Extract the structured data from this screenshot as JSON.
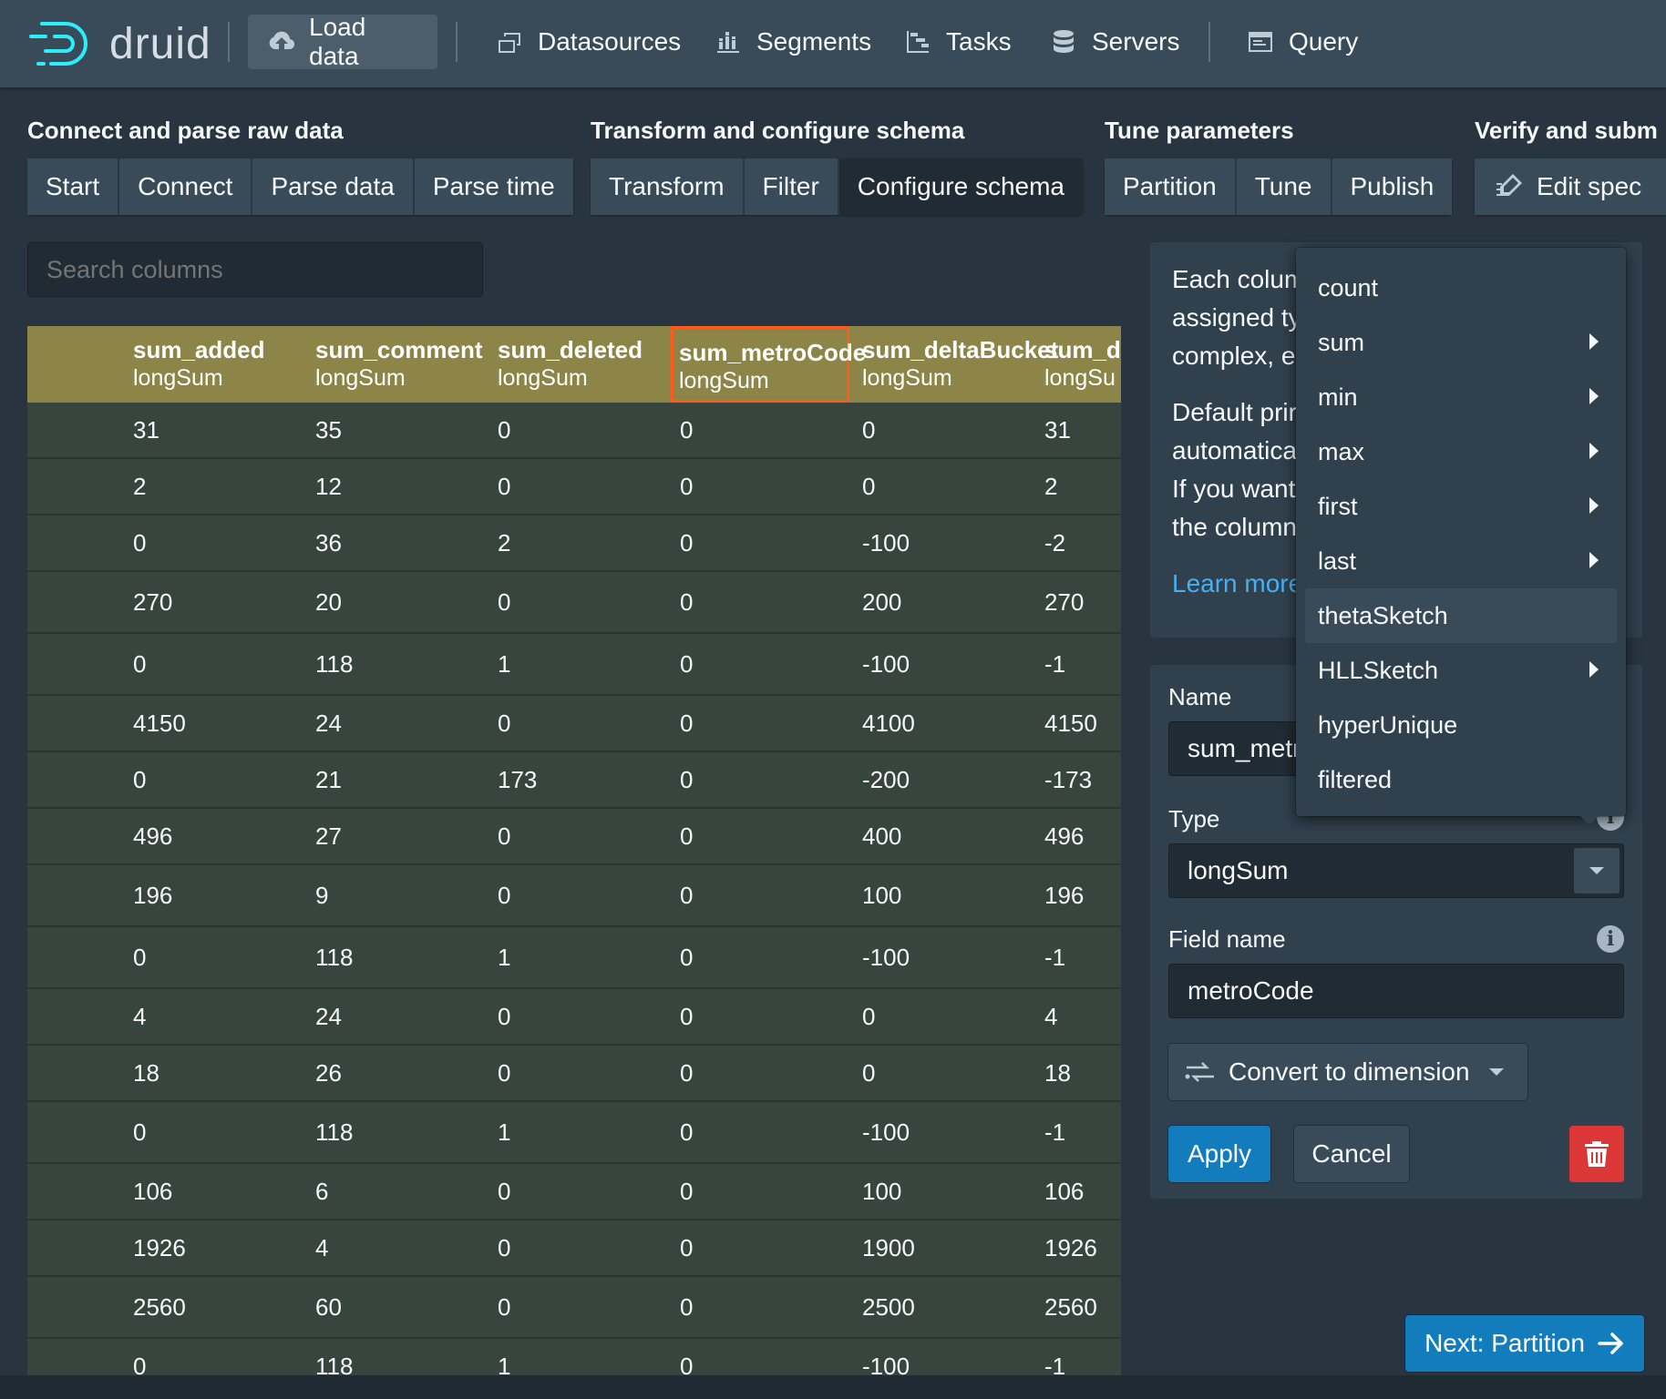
{
  "header": {
    "logo_text": "druid",
    "nav": [
      {
        "label": "Load data",
        "icon": "cloud-upload-icon",
        "active": true
      },
      {
        "label": "Datasources",
        "icon": "multi-select-icon"
      },
      {
        "label": "Segments",
        "icon": "stacked-chart-icon"
      },
      {
        "label": "Tasks",
        "icon": "gantt-chart-icon"
      },
      {
        "label": "Servers",
        "icon": "database-icon"
      },
      {
        "label": "Query",
        "icon": "application-icon"
      }
    ]
  },
  "steps": {
    "groups": [
      {
        "label": "Connect and parse raw data",
        "steps": [
          "Start",
          "Connect",
          "Parse data",
          "Parse time"
        ]
      },
      {
        "label": "Transform and configure schema",
        "steps": [
          "Transform",
          "Filter",
          "Configure schema"
        ]
      },
      {
        "label": "Tune parameters",
        "steps": [
          "Partition",
          "Tune",
          "Publish"
        ]
      },
      {
        "label": "Verify and subm",
        "steps": [
          "Edit spec"
        ]
      }
    ],
    "active": "Configure schema"
  },
  "search": {
    "placeholder": "Search columns"
  },
  "table": {
    "columns": [
      {
        "name": "sum_added",
        "type": "longSum"
      },
      {
        "name": "sum_comment",
        "type": "longSum"
      },
      {
        "name": "sum_deleted",
        "type": "longSum"
      },
      {
        "name": "sum_metroCode",
        "type": "longSum",
        "selected": true
      },
      {
        "name": "sum_deltaBucket",
        "type": "longSum"
      },
      {
        "name": "sum_d",
        "type": "longSu"
      }
    ],
    "rows": [
      [
        "31",
        "35",
        "0",
        "0",
        "0",
        "31"
      ],
      [
        "2",
        "12",
        "0",
        "0",
        "0",
        "2"
      ],
      [
        "0",
        "36",
        "2",
        "0",
        "-100",
        "-2"
      ],
      [
        "270",
        "20",
        "0",
        "0",
        "200",
        "270"
      ],
      [
        "0",
        "118",
        "1",
        "0",
        "-100",
        "-1"
      ],
      [
        "4150",
        "24",
        "0",
        "0",
        "4100",
        "4150"
      ],
      [
        "0",
        "21",
        "173",
        "0",
        "-200",
        "-173"
      ],
      [
        "496",
        "27",
        "0",
        "0",
        "400",
        "496"
      ],
      [
        "196",
        "9",
        "0",
        "0",
        "100",
        "196"
      ],
      [
        "0",
        "118",
        "1",
        "0",
        "-100",
        "-1"
      ],
      [
        "4",
        "24",
        "0",
        "0",
        "0",
        "4"
      ],
      [
        "18",
        "26",
        "0",
        "0",
        "0",
        "18"
      ],
      [
        "0",
        "118",
        "1",
        "0",
        "-100",
        "-1"
      ],
      [
        "106",
        "6",
        "0",
        "0",
        "100",
        "106"
      ],
      [
        "1926",
        "4",
        "0",
        "0",
        "1900",
        "1926"
      ],
      [
        "2560",
        "60",
        "0",
        "0",
        "2500",
        "2560"
      ],
      [
        "0",
        "118",
        "1",
        "0",
        "-100",
        "-1"
      ]
    ]
  },
  "info_card": {
    "lines": [
      "Each colum",
      "assigned ty",
      "complex, e",
      "",
      "Default prir",
      "automatica",
      "If you want",
      "the column"
    ],
    "learn_more": "Learn more"
  },
  "edit_panel": {
    "name_label": "Name",
    "name_value": "sum_metr",
    "type_label": "Type",
    "type_value": "longSum",
    "field_name_label": "Field name",
    "field_name_value": "metroCode",
    "convert_label": "Convert to dimension",
    "apply_label": "Apply",
    "cancel_label": "Cancel"
  },
  "type_menu": {
    "items": [
      {
        "label": "count",
        "submenu": false
      },
      {
        "label": "sum",
        "submenu": true
      },
      {
        "label": "min",
        "submenu": true
      },
      {
        "label": "max",
        "submenu": true
      },
      {
        "label": "first",
        "submenu": true
      },
      {
        "label": "last",
        "submenu": true
      },
      {
        "label": "thetaSketch",
        "submenu": false,
        "hover": true
      },
      {
        "label": "HLLSketch",
        "submenu": true
      },
      {
        "label": "hyperUnique",
        "submenu": false
      },
      {
        "label": "filtered",
        "submenu": false
      }
    ]
  },
  "next_button": {
    "label": "Next: Partition"
  },
  "colors": {
    "accent": "#137cbd",
    "header_row": "#8d8448",
    "selected_outline": "#ff5a1a",
    "danger": "#db3737"
  }
}
